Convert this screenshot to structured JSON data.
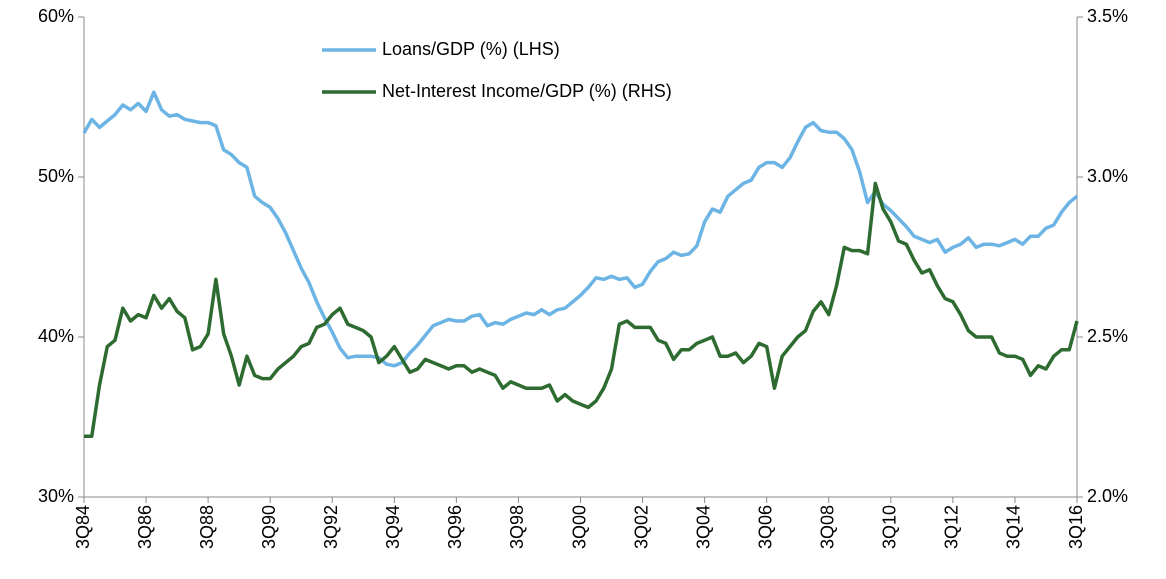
{
  "chart_data": {
    "type": "line",
    "categories": [
      "3Q84",
      null,
      null,
      null,
      null,
      null,
      null,
      null,
      "3Q86",
      null,
      null,
      null,
      null,
      null,
      null,
      null,
      "3Q88",
      null,
      null,
      null,
      null,
      null,
      null,
      null,
      "3Q90",
      null,
      null,
      null,
      null,
      null,
      null,
      null,
      "3Q92",
      null,
      null,
      null,
      null,
      null,
      null,
      null,
      "3Q94",
      null,
      null,
      null,
      null,
      null,
      null,
      null,
      "3Q96",
      null,
      null,
      null,
      null,
      null,
      null,
      null,
      "3Q98",
      null,
      null,
      null,
      null,
      null,
      null,
      null,
      "3Q00",
      null,
      null,
      null,
      null,
      null,
      null,
      null,
      "3Q02",
      null,
      null,
      null,
      null,
      null,
      null,
      null,
      "3Q04",
      null,
      null,
      null,
      null,
      null,
      null,
      null,
      "3Q06",
      null,
      null,
      null,
      null,
      null,
      null,
      null,
      "3Q08",
      null,
      null,
      null,
      null,
      null,
      null,
      null,
      "3Q10",
      null,
      null,
      null,
      null,
      null,
      null,
      null,
      "3Q12",
      null,
      null,
      null,
      null,
      null,
      null,
      null,
      "3Q14",
      null,
      null,
      null,
      null,
      null,
      null,
      null,
      "3Q16"
    ],
    "series": [
      {
        "name": "Loans/GDP (%) (LHS)",
        "color": "#6cb4e4",
        "axis": "y",
        "values": [
          52.75,
          53.6,
          53.1,
          53.5,
          53.9,
          54.5,
          54.2,
          54.6,
          54.1,
          55.3,
          54.2,
          53.8,
          53.9,
          53.6,
          53.5,
          53.4,
          53.4,
          53.2,
          51.7,
          51.4,
          50.9,
          50.6,
          48.8,
          48.4,
          48.1,
          47.4,
          46.5,
          45.4,
          44.3,
          43.4,
          42.2,
          41.2,
          40.3,
          39.3,
          38.7,
          38.8,
          38.8,
          38.8,
          38.7,
          38.3,
          38.2,
          38.4,
          39.0,
          39.5,
          40.1,
          40.7,
          40.9,
          41.1,
          41.0,
          41.0,
          41.3,
          41.4,
          40.7,
          40.9,
          40.8,
          41.1,
          41.3,
          41.5,
          41.4,
          41.7,
          41.4,
          41.7,
          41.8,
          42.2,
          42.6,
          43.1,
          43.7,
          43.6,
          43.8,
          43.6,
          43.7,
          43.1,
          43.3,
          44.1,
          44.7,
          44.9,
          45.3,
          45.1,
          45.2,
          45.7,
          47.2,
          48.0,
          47.8,
          48.8,
          49.2,
          49.6,
          49.8,
          50.6,
          50.9,
          50.9,
          50.6,
          51.2,
          52.2,
          53.1,
          53.4,
          52.9,
          52.8,
          52.8,
          52.4,
          51.7,
          50.3,
          48.4,
          49.1,
          48.3,
          47.9,
          47.4,
          46.9,
          46.3,
          46.1,
          45.9,
          46.1,
          45.3,
          45.6,
          45.8,
          46.2,
          45.6,
          45.8,
          45.8,
          45.7,
          45.9,
          46.1,
          45.8,
          46.3,
          46.3,
          46.8,
          47.0,
          47.8,
          48.4,
          48.8
        ]
      },
      {
        "name": "Net-Interest Income/GDP (%) (RHS)",
        "color": "#2e6b30",
        "axis": "y2",
        "values": [
          2.19,
          2.19,
          2.35,
          2.47,
          2.49,
          2.59,
          2.55,
          2.57,
          2.56,
          2.63,
          2.59,
          2.62,
          2.58,
          2.56,
          2.46,
          2.47,
          2.51,
          2.68,
          2.51,
          2.44,
          2.35,
          2.44,
          2.38,
          2.37,
          2.37,
          2.4,
          2.42,
          2.44,
          2.47,
          2.48,
          2.53,
          2.54,
          2.57,
          2.59,
          2.54,
          2.53,
          2.52,
          2.5,
          2.42,
          2.44,
          2.47,
          2.43,
          2.39,
          2.4,
          2.43,
          2.42,
          2.41,
          2.4,
          2.41,
          2.41,
          2.39,
          2.4,
          2.39,
          2.38,
          2.34,
          2.36,
          2.35,
          2.34,
          2.34,
          2.34,
          2.35,
          2.3,
          2.32,
          2.3,
          2.29,
          2.28,
          2.3,
          2.34,
          2.4,
          2.54,
          2.55,
          2.53,
          2.53,
          2.53,
          2.49,
          2.48,
          2.43,
          2.46,
          2.46,
          2.48,
          2.49,
          2.5,
          2.44,
          2.44,
          2.45,
          2.42,
          2.44,
          2.48,
          2.47,
          2.34,
          2.44,
          2.47,
          2.5,
          2.52,
          2.58,
          2.61,
          2.57,
          2.66,
          2.78,
          2.77,
          2.77,
          2.76,
          2.98,
          2.9,
          2.86,
          2.8,
          2.79,
          2.74,
          2.7,
          2.71,
          2.66,
          2.62,
          2.61,
          2.57,
          2.52,
          2.5,
          2.5,
          2.5,
          2.45,
          2.44,
          2.44,
          2.43,
          2.38,
          2.41,
          2.4,
          2.44,
          2.46,
          2.46,
          2.55
        ]
      }
    ],
    "ylim": [
      30,
      60
    ],
    "yticks": [
      {
        "value": 30,
        "label": "30%"
      },
      {
        "value": 40,
        "label": "40%"
      },
      {
        "value": 50,
        "label": "50%"
      },
      {
        "value": 60,
        "label": "60%"
      }
    ],
    "y2lim": [
      2.0,
      3.5
    ],
    "y2ticks": [
      {
        "value": 2.0,
        "label": "2.0%"
      },
      {
        "value": 2.5,
        "label": "2.5%"
      },
      {
        "value": 3.0,
        "label": "3.0%"
      },
      {
        "value": 3.5,
        "label": "3.5%"
      }
    ],
    "grid": false
  }
}
